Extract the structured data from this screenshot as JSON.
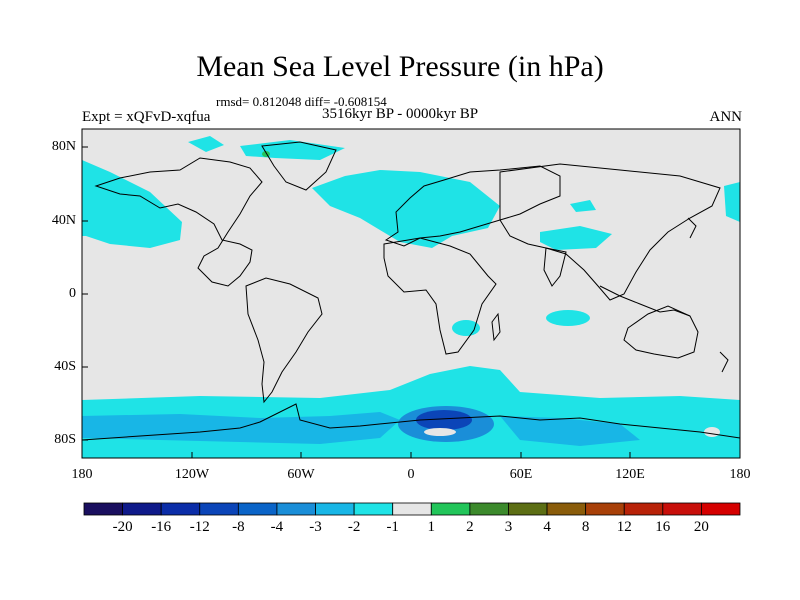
{
  "title": "Mean Sea Level Pressure (in hPa)",
  "stats_line": "rmsd= 0.812048  diff= -0.608154",
  "period": "3516kyr BP - 0000kyr BP",
  "experiment": "Expt = xQFvD-xqfua",
  "season": "ANN",
  "axes": {
    "y_ticks": [
      "80N",
      "40N",
      "0",
      "40S",
      "80S"
    ],
    "x_ticks": [
      "180",
      "120W",
      "60W",
      "0",
      "60E",
      "120E",
      "180"
    ]
  },
  "colorbar": {
    "labels": [
      "-20",
      "-16",
      "-12",
      "-8",
      "-4",
      "-3",
      "-2",
      "-1",
      "1",
      "2",
      "3",
      "4",
      "8",
      "12",
      "16",
      "20"
    ],
    "colors": [
      "#1a0f5f",
      "#0f1a8a",
      "#0b2da8",
      "#0b45b8",
      "#0a64c8",
      "#1a8ed8",
      "#18b6e6",
      "#1fe3e6",
      "#e6e6e6",
      "#22c55a",
      "#3c8a2c",
      "#5c6e14",
      "#8a5c0a",
      "#a84008",
      "#b82208",
      "#c80f0a",
      "#d50000"
    ]
  },
  "colors": {
    "background_field": "#e6e6e6",
    "anomaly_light": "#1fe3e6",
    "anomaly_mid": "#18b6e6",
    "anomaly_dark": "#0b45b8",
    "coast": "#000000"
  }
}
